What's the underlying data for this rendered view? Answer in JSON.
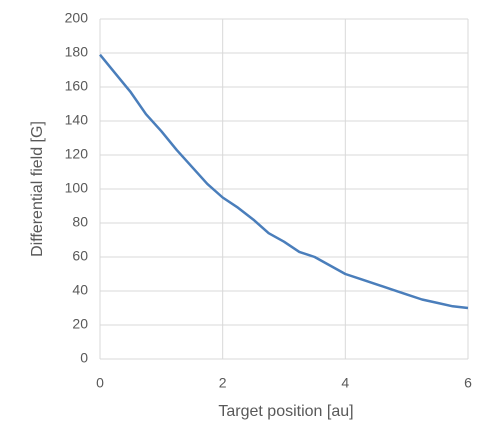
{
  "chart_data": {
    "type": "line",
    "x_label": "Target position [au]",
    "y_label": "Differential field [G]",
    "x": [
      0,
      0.25,
      0.5,
      0.75,
      1,
      1.25,
      1.5,
      1.75,
      2,
      2.25,
      2.5,
      2.75,
      3,
      3.25,
      3.5,
      3.75,
      4,
      4.25,
      4.5,
      4.75,
      5,
      5.25,
      5.5,
      5.75,
      6
    ],
    "values": [
      179,
      168,
      157,
      144,
      134,
      123,
      113,
      103,
      95,
      89,
      82,
      74,
      69,
      63,
      60,
      55,
      50,
      47,
      44,
      41,
      38,
      35,
      33,
      31,
      30
    ],
    "color": "#4a7ebb",
    "xlim": [
      0,
      6
    ],
    "xticks": [
      0,
      2,
      4,
      6
    ],
    "ylim": [
      0,
      200
    ],
    "yticks": [
      0,
      20,
      40,
      60,
      80,
      100,
      120,
      140,
      160,
      180,
      200
    ],
    "grid": true
  }
}
